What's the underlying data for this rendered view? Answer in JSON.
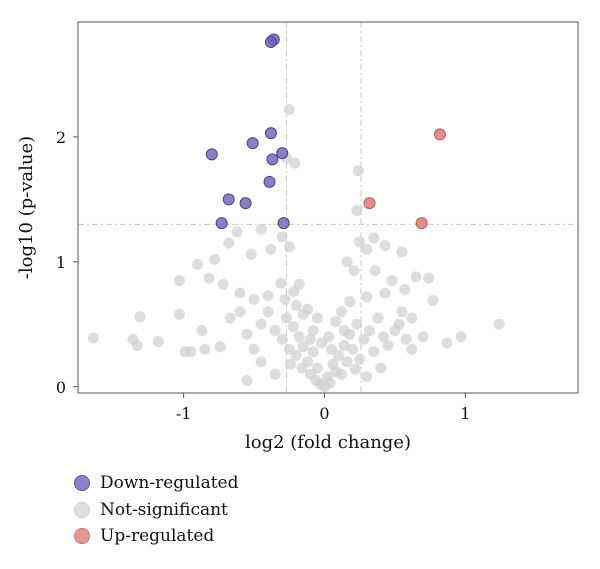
{
  "chart_data": {
    "type": "scatter",
    "title": "",
    "xlabel": "log2 (fold change)",
    "ylabel": "-log10 (p-value)",
    "xlim": [
      -1.75,
      1.8
    ],
    "ylim": [
      -0.05,
      2.92
    ],
    "xticks": [
      -1,
      0,
      1
    ],
    "yticks": [
      0,
      1,
      2
    ],
    "threshold_lines": {
      "x": [
        -0.27,
        0.26
      ],
      "y": 1.3
    },
    "grid": false,
    "legend_position": "bottom-left",
    "colors": {
      "Down-regulated": "#6b62b3",
      "Not-significant": "#d9d9d9",
      "Up-regulated": "#d97b78"
    },
    "series": [
      {
        "name": "Down-regulated",
        "points": [
          [
            -0.36,
            2.78
          ],
          [
            -0.38,
            2.76
          ],
          [
            -0.8,
            1.86
          ],
          [
            -0.51,
            1.95
          ],
          [
            -0.38,
            2.03
          ],
          [
            -0.3,
            1.87
          ],
          [
            -0.37,
            1.82
          ],
          [
            -0.39,
            1.64
          ],
          [
            -0.68,
            1.5
          ],
          [
            -0.56,
            1.47
          ],
          [
            -0.73,
            1.31
          ],
          [
            -0.29,
            1.31
          ]
        ]
      },
      {
        "name": "Not-significant",
        "points": [
          [
            -0.25,
            2.22
          ],
          [
            -0.27,
            1.83
          ],
          [
            -0.21,
            1.79
          ],
          [
            0.24,
            1.73
          ],
          [
            0.23,
            1.41
          ],
          [
            -0.62,
            1.24
          ],
          [
            -0.45,
            1.26
          ],
          [
            -0.3,
            1.2
          ],
          [
            -0.25,
            1.12
          ],
          [
            -0.38,
            1.1
          ],
          [
            -0.52,
            1.06
          ],
          [
            -0.68,
            1.15
          ],
          [
            -0.78,
            1.02
          ],
          [
            -0.9,
            0.98
          ],
          [
            -1.03,
            0.85
          ],
          [
            -0.82,
            0.87
          ],
          [
            -0.72,
            0.82
          ],
          [
            -0.6,
            0.75
          ],
          [
            -0.5,
            0.7
          ],
          [
            -0.4,
            0.73
          ],
          [
            -0.31,
            0.83
          ],
          [
            -0.22,
            0.76
          ],
          [
            -0.18,
            0.82
          ],
          [
            0.25,
            1.16
          ],
          [
            0.35,
            1.19
          ],
          [
            0.3,
            1.1
          ],
          [
            0.43,
            1.13
          ],
          [
            0.55,
            1.08
          ],
          [
            0.16,
            1.0
          ],
          [
            0.21,
            0.93
          ],
          [
            0.36,
            0.93
          ],
          [
            0.48,
            0.85
          ],
          [
            0.65,
            0.88
          ],
          [
            0.74,
            0.87
          ],
          [
            0.57,
            0.78
          ],
          [
            0.43,
            0.75
          ],
          [
            0.3,
            0.72
          ],
          [
            0.77,
            0.69
          ],
          [
            0.55,
            0.6
          ],
          [
            0.62,
            0.55
          ],
          [
            0.7,
            0.4
          ],
          [
            0.87,
            0.35
          ],
          [
            0.97,
            0.4
          ],
          [
            1.24,
            0.5
          ],
          [
            -1.64,
            0.39
          ],
          [
            -1.36,
            0.38
          ],
          [
            -1.33,
            0.33
          ],
          [
            -1.31,
            0.56
          ],
          [
            -1.18,
            0.36
          ],
          [
            -1.03,
            0.58
          ],
          [
            -0.99,
            0.28
          ],
          [
            -0.95,
            0.28
          ],
          [
            -0.87,
            0.45
          ],
          [
            -0.85,
            0.3
          ],
          [
            -0.74,
            0.32
          ],
          [
            -0.67,
            0.55
          ],
          [
            -0.6,
            0.6
          ],
          [
            -0.55,
            0.42
          ],
          [
            -0.5,
            0.3
          ],
          [
            -0.45,
            0.5
          ],
          [
            -0.4,
            0.6
          ],
          [
            -0.35,
            0.45
          ],
          [
            -0.3,
            0.38
          ],
          [
            -0.27,
            0.55
          ],
          [
            -0.25,
            0.3
          ],
          [
            -0.22,
            0.48
          ],
          [
            -0.2,
            0.25
          ],
          [
            -0.18,
            0.4
          ],
          [
            -0.16,
            0.15
          ],
          [
            -0.15,
            0.32
          ],
          [
            -0.12,
            0.2
          ],
          [
            -0.1,
            0.1
          ],
          [
            -0.08,
            0.28
          ],
          [
            -0.06,
            0.05
          ],
          [
            -0.05,
            0.15
          ],
          [
            -0.03,
            0.02
          ],
          [
            0.0,
            0.0
          ],
          [
            0.02,
            0.08
          ],
          [
            0.04,
            0.03
          ],
          [
            0.06,
            0.18
          ],
          [
            0.08,
            0.12
          ],
          [
            0.1,
            0.25
          ],
          [
            0.12,
            0.1
          ],
          [
            0.14,
            0.33
          ],
          [
            0.16,
            0.2
          ],
          [
            0.18,
            0.42
          ],
          [
            0.2,
            0.3
          ],
          [
            0.23,
            0.5
          ],
          [
            0.25,
            0.22
          ],
          [
            0.28,
            0.38
          ],
          [
            0.32,
            0.45
          ],
          [
            0.35,
            0.28
          ],
          [
            0.38,
            0.55
          ],
          [
            0.42,
            0.4
          ],
          [
            0.45,
            0.33
          ],
          [
            0.5,
            0.45
          ],
          [
            0.53,
            0.5
          ],
          [
            0.58,
            0.38
          ],
          [
            0.62,
            0.3
          ],
          [
            -0.08,
            0.45
          ],
          [
            -0.05,
            0.55
          ],
          [
            0.03,
            0.4
          ],
          [
            -0.12,
            0.62
          ],
          [
            0.08,
            0.52
          ],
          [
            -0.2,
            0.65
          ],
          [
            0.12,
            0.6
          ],
          [
            -0.28,
            0.7
          ],
          [
            0.18,
            0.68
          ],
          [
            -0.45,
            0.2
          ],
          [
            0.4,
            0.15
          ],
          [
            -0.35,
            0.1
          ],
          [
            0.3,
            0.08
          ],
          [
            -0.55,
            0.05
          ],
          [
            -0.15,
            0.58
          ],
          [
            -0.24,
            0.18
          ],
          [
            0.22,
            0.14
          ],
          [
            -0.02,
            0.35
          ],
          [
            0.05,
            0.3
          ],
          [
            -0.1,
            0.38
          ],
          [
            0.14,
            0.45
          ]
        ]
      },
      {
        "name": "Up-regulated",
        "points": [
          [
            0.82,
            2.02
          ],
          [
            0.32,
            1.47
          ],
          [
            0.69,
            1.31
          ]
        ]
      }
    ]
  }
}
